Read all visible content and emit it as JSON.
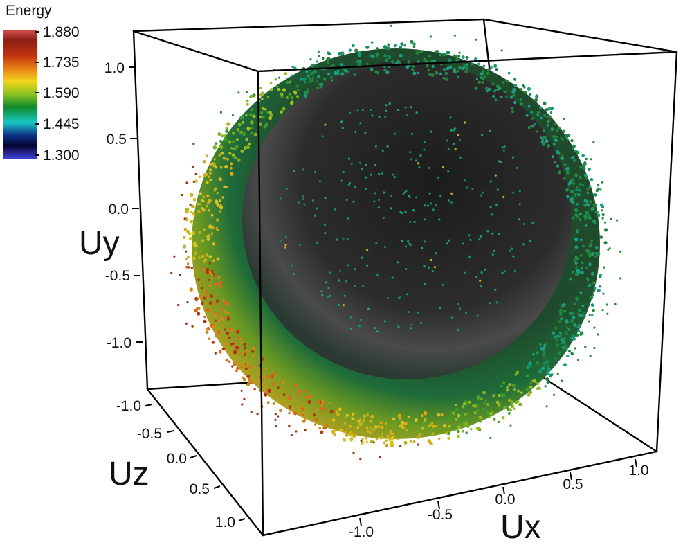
{
  "chart_data": {
    "type": "scatter",
    "dimensions": 3,
    "xlabel": "Ux",
    "ylabel": "Uy",
    "zlabel": "Uz",
    "x_ticks": [
      "-1.0",
      "-0.5",
      "0.0",
      "0.5",
      "1.0"
    ],
    "y_ticks": [
      "1.0",
      "0.5",
      "0.0",
      "-0.5",
      "-1.0"
    ],
    "z_ticks": [
      "-1.0",
      "-0.5",
      "0.0",
      "0.5",
      "1.0"
    ],
    "xlim": [
      -1.3,
      1.3
    ],
    "ylim": [
      -1.3,
      1.3
    ],
    "zlim": [
      -1.3,
      1.3
    ],
    "shape": "spherical shell of points, radius ≈ 1.25",
    "colorbar": {
      "title": "Energy",
      "ticks": [
        "1.880",
        "1.735",
        "1.590",
        "1.445",
        "1.300"
      ],
      "range": [
        1.3,
        1.88
      ],
      "colors": [
        "#cc3b3b",
        "#7a1a10",
        "#e35a10",
        "#f0a020",
        "#f2f21c",
        "#32a01e",
        "#138a4a",
        "#1ad9d9",
        "#0c1a8a",
        "#050533",
        "#3a3ad8"
      ]
    },
    "color_mapping": "points with larger |Ux| toward negative x are warmer (higher energy ~1.6–1.8); surface near +Ux / front is green-teal (~1.44–1.5); interior dark gray"
  }
}
